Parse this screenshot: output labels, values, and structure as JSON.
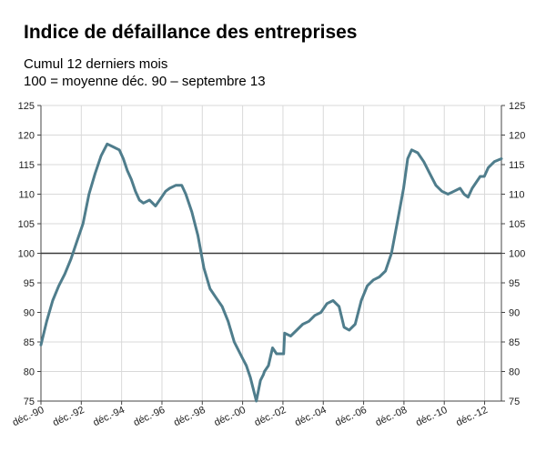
{
  "header": {
    "title": "Indice de défaillance des entreprises",
    "subtitle_line1": "Cumul 12 derniers mois",
    "subtitle_line2": "100 = moyenne déc. 90 – septembre 13"
  },
  "colors": {
    "series": "#4f7d8c",
    "baseline": "#3a3a3a",
    "grid": "#d9d9d9",
    "axis": "#444444"
  },
  "chart_data": {
    "type": "line",
    "title": "Indice de défaillance des entreprises",
    "subtitle": "Cumul 12 derniers mois / 100 = moyenne déc. 90 – septembre 13",
    "xlabel": "",
    "ylabel": "",
    "ylim": [
      75,
      125
    ],
    "yticks": [
      75,
      80,
      85,
      90,
      95,
      100,
      105,
      110,
      115,
      120,
      125
    ],
    "xlim": [
      1990.917,
      2013.75
    ],
    "xticks": [
      {
        "pos": 1990.917,
        "label": "déc.-90"
      },
      {
        "pos": 1992.917,
        "label": "déc.-92"
      },
      {
        "pos": 1994.917,
        "label": "déc.-94"
      },
      {
        "pos": 1996.917,
        "label": "déc.-96"
      },
      {
        "pos": 1998.917,
        "label": "déc.-98"
      },
      {
        "pos": 2000.917,
        "label": "déc.-00"
      },
      {
        "pos": 2002.917,
        "label": "déc.-02"
      },
      {
        "pos": 2004.917,
        "label": "déc.-04"
      },
      {
        "pos": 2006.917,
        "label": "déc.-06"
      },
      {
        "pos": 2008.917,
        "label": "déc.-08"
      },
      {
        "pos": 2010.917,
        "label": "déc.-10"
      },
      {
        "pos": 2012.917,
        "label": "déc.-12"
      }
    ],
    "reference_line": 100,
    "grid": true,
    "legend": "none",
    "series": [
      {
        "x": [
          1990.917,
          1991.2,
          1991.5,
          1991.8,
          1992.1,
          1992.4,
          1992.7,
          1993.0,
          1993.3,
          1993.6,
          1993.9,
          1994.2,
          1994.5,
          1994.8,
          1995.0,
          1995.2,
          1995.4,
          1995.6,
          1995.8,
          1996.0,
          1996.3,
          1996.6,
          1996.9,
          1997.1,
          1997.3,
          1997.6,
          1997.9,
          1998.1,
          1998.4,
          1998.7,
          1999.0,
          1999.3,
          1999.6,
          1999.9,
          2000.2,
          2000.5,
          2000.8,
          2000.95,
          2001.1,
          2001.3,
          2001.6,
          2001.8,
          2001.95,
          2002.0,
          2002.2,
          2002.4,
          2002.6,
          2002.8,
          2002.95,
          2003.0,
          2003.3,
          2003.6,
          2003.9,
          2004.2,
          2004.5,
          2004.8,
          2005.1,
          2005.4,
          2005.7,
          2005.95,
          2006.2,
          2006.5,
          2006.8,
          2007.1,
          2007.4,
          2007.7,
          2008.0,
          2008.3,
          2008.6,
          2008.9,
          2009.1,
          2009.3,
          2009.6,
          2009.9,
          2010.2,
          2010.5,
          2010.8,
          2011.1,
          2011.4,
          2011.7,
          2011.9,
          2012.1,
          2012.3,
          2012.5,
          2012.7,
          2012.9,
          2013.1,
          2013.4,
          2013.75
        ],
        "y": [
          84.5,
          88.5,
          92.0,
          94.5,
          96.5,
          99.0,
          102.0,
          105.0,
          110.0,
          113.5,
          116.5,
          118.5,
          118.0,
          117.5,
          116.0,
          114.0,
          112.5,
          110.5,
          109.0,
          108.5,
          109.0,
          108.0,
          109.5,
          110.5,
          111.0,
          111.5,
          111.5,
          110.0,
          107.0,
          103.0,
          97.5,
          94.0,
          92.5,
          91.0,
          88.5,
          85.0,
          83.0,
          82.0,
          81.0,
          79.0,
          75.0,
          78.5,
          79.5,
          80.0,
          81.0,
          84.0,
          83.0,
          83.0,
          83.0,
          86.5,
          86.0,
          87.0,
          88.0,
          88.5,
          89.5,
          90.0,
          91.5,
          92.0,
          91.0,
          87.5,
          87.0,
          88.0,
          92.0,
          94.5,
          95.5,
          96.0,
          97.0,
          100.0,
          105.5,
          111.0,
          116.0,
          117.5,
          117.0,
          115.5,
          113.5,
          111.5,
          110.5,
          110.0,
          110.5,
          111.0,
          110.0,
          109.5,
          111.0,
          112.0,
          113.0,
          113.0,
          114.5,
          115.5,
          116.0
        ]
      }
    ]
  }
}
